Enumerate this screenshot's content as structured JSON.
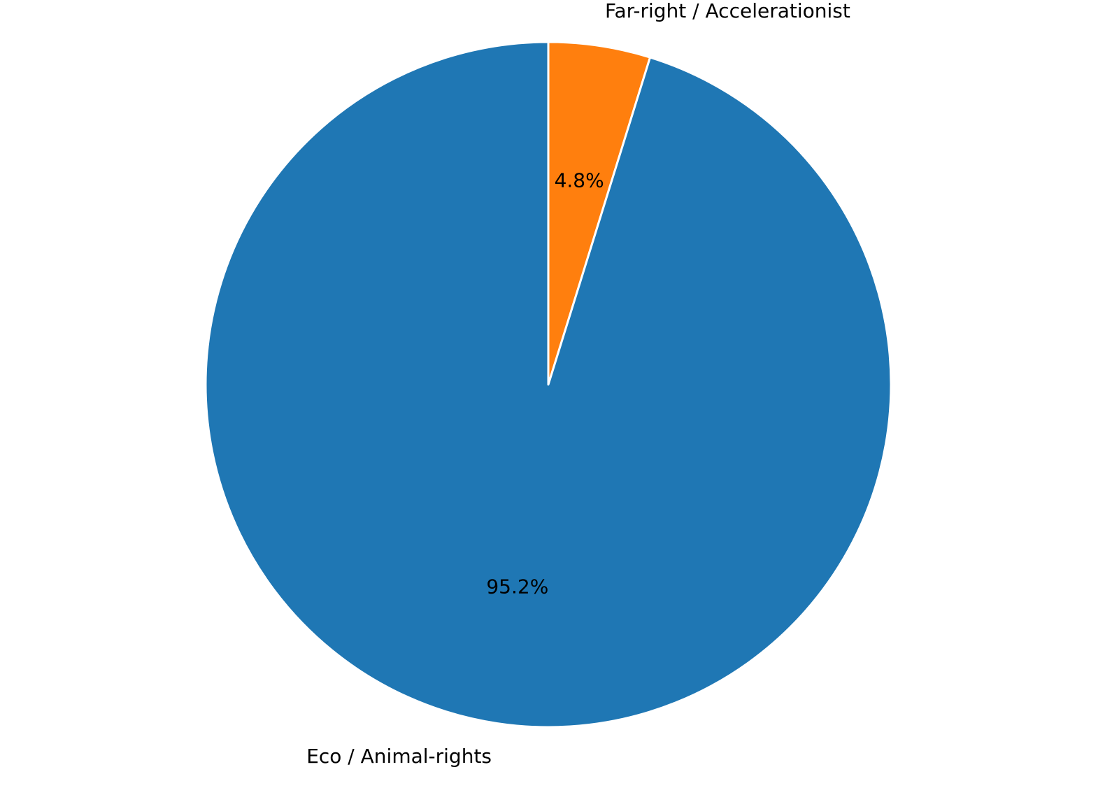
{
  "chart_data": {
    "type": "pie",
    "categories": [
      "Far-right / Accelerationist",
      "Eco / Animal-rights"
    ],
    "values": [
      4.8,
      95.2
    ],
    "value_labels": [
      "4.8%",
      "95.2%"
    ],
    "colors": [
      "#ff7f0e",
      "#1f77b4"
    ],
    "start_angle": 90,
    "clockwise": true
  }
}
